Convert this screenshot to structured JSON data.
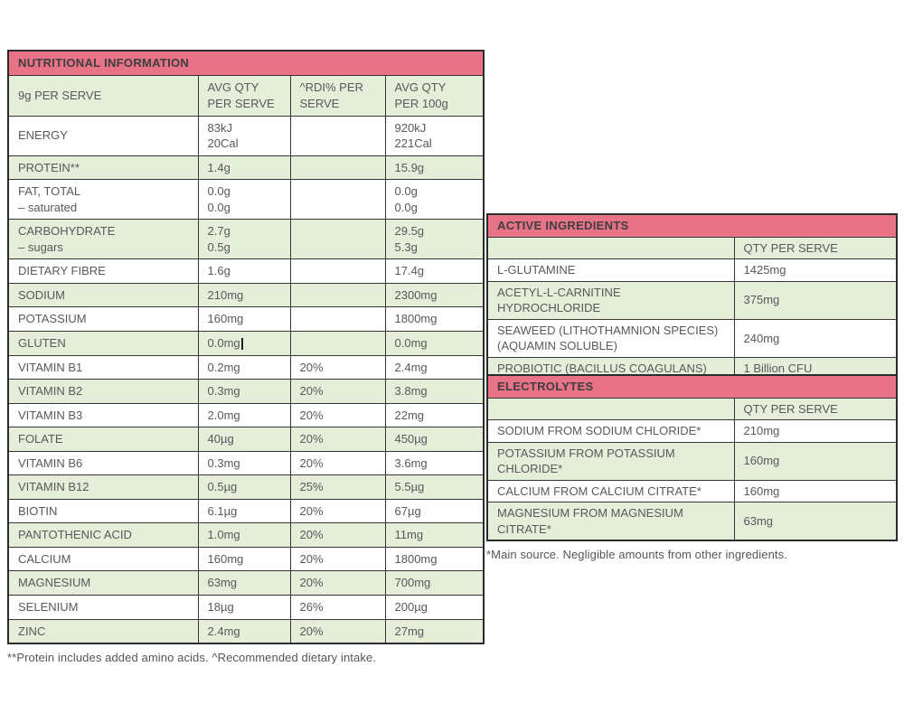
{
  "colors": {
    "header_pink": "#e97386",
    "row_green": "#e4eed8",
    "row_white": "#ffffff",
    "border_dark": "#2b2b2b",
    "text_gray": "#58595b"
  },
  "nutrition_table": {
    "title": "NUTRITIONAL INFORMATION",
    "columns": [
      "9g PER SERVE",
      "AVG QTY\nPER SERVE",
      "^RDI% PER\nSERVE",
      "AVG QTY\nPER 100g"
    ],
    "rows": [
      {
        "label": "ENERGY",
        "per_serve": "83kJ\n20Cal",
        "rdi": "",
        "per_100g": "920kJ\n221Cal"
      },
      {
        "label": "PROTEIN**",
        "per_serve": "1.4g",
        "rdi": "",
        "per_100g": "15.9g"
      },
      {
        "label": "FAT, TOTAL\n– saturated",
        "per_serve": "0.0g\n0.0g",
        "rdi": "",
        "per_100g": "0.0g\n0.0g"
      },
      {
        "label": "CARBOHYDRATE\n– sugars",
        "per_serve": "2.7g\n0.5g",
        "rdi": "",
        "per_100g": "29.5g\n5.3g"
      },
      {
        "label": "DIETARY FIBRE",
        "per_serve": "1.6g",
        "rdi": "",
        "per_100g": "17.4g"
      },
      {
        "label": "SODIUM",
        "per_serve": "210mg",
        "rdi": "",
        "per_100g": "2300mg"
      },
      {
        "label": "POTASSIUM",
        "per_serve": "160mg",
        "rdi": "",
        "per_100g": "1800mg"
      },
      {
        "label": "GLUTEN",
        "per_serve": "0.0mg",
        "rdi": "",
        "per_100g": "0.0mg",
        "has_cursor": true
      },
      {
        "label": "VITAMIN B1",
        "per_serve": "0.2mg",
        "rdi": "20%",
        "per_100g": "2.4mg"
      },
      {
        "label": "VITAMIN B2",
        "per_serve": "0.3mg",
        "rdi": "20%",
        "per_100g": "3.8mg"
      },
      {
        "label": "VITAMIN B3",
        "per_serve": "2.0mg",
        "rdi": "20%",
        "per_100g": "22mg"
      },
      {
        "label": "FOLATE",
        "per_serve": "40µg",
        "rdi": "20%",
        "per_100g": "450µg"
      },
      {
        "label": "VITAMIN B6",
        "per_serve": "0.3mg",
        "rdi": "20%",
        "per_100g": "3.6mg"
      },
      {
        "label": "VITAMIN B12",
        "per_serve": "0.5µg",
        "rdi": "25%",
        "per_100g": "5.5µg"
      },
      {
        "label": "BIOTIN",
        "per_serve": "6.1µg",
        "rdi": "20%",
        "per_100g": "67µg"
      },
      {
        "label": "PANTOTHENIC ACID",
        "per_serve": "1.0mg",
        "rdi": "20%",
        "per_100g": "11mg"
      },
      {
        "label": "CALCIUM",
        "per_serve": "160mg",
        "rdi": "20%",
        "per_100g": "1800mg"
      },
      {
        "label": "MAGNESIUM",
        "per_serve": "63mg",
        "rdi": "20%",
        "per_100g": "700mg"
      },
      {
        "label": "SELENIUM",
        "per_serve": "18µg",
        "rdi": "26%",
        "per_100g": "200µg"
      },
      {
        "label": "ZINC",
        "per_serve": "2.4mg",
        "rdi": "20%",
        "per_100g": "27mg"
      }
    ],
    "footnote": "**Protein includes added amino acids. ^Recommended dietary intake."
  },
  "active_ingredients_table": {
    "title": "ACTIVE INGREDIENTS",
    "qty_header": "QTY PER SERVE",
    "rows": [
      {
        "label": "L-GLUTAMINE",
        "qty": "1425mg"
      },
      {
        "label": "ACETYL-L-CARNITINE HYDROCHLORIDE",
        "qty": "375mg"
      },
      {
        "label": "SEAWEED (LITHOTHAMNION SPECIES)\n(AQUAMIN SOLUBLE)",
        "qty": "240mg"
      },
      {
        "label": "PROBIOTIC (BACILLUS COAGULANS)",
        "qty": "1 Billion CFU"
      }
    ]
  },
  "electrolytes_table": {
    "title": "ELECTROLYTES",
    "qty_header": "QTY PER SERVE",
    "rows": [
      {
        "label": "SODIUM FROM SODIUM CHLORIDE*",
        "qty": "210mg"
      },
      {
        "label": "POTASSIUM FROM POTASSIUM CHLORIDE*",
        "qty": "160mg"
      },
      {
        "label": "CALCIUM FROM CALCIUM CITRATE*",
        "qty": "160mg"
      },
      {
        "label": "MAGNESIUM FROM MAGNESIUM CITRATE*",
        "qty": "63mg"
      }
    ],
    "footnote": "*Main source. Negligible amounts from other ingredients."
  }
}
